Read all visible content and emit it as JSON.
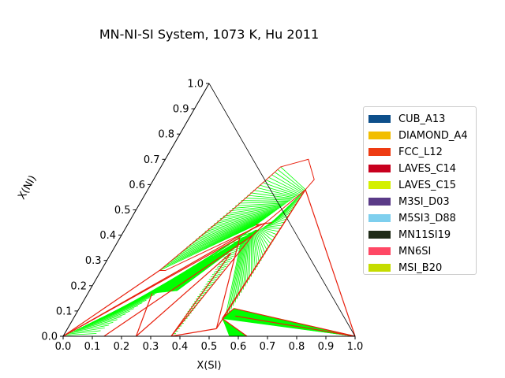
{
  "chart_data": {
    "type": "ternary phase diagram",
    "title": "MN-NI-SI System, 1073 K, Hu 2011",
    "xlabel": "X(SI)",
    "ylabel": "X(NI)",
    "xlim": [
      0,
      1
    ],
    "ylim": [
      0,
      1
    ],
    "x_ticks": [
      "0.0",
      "0.1",
      "0.2",
      "0.3",
      "0.4",
      "0.5",
      "0.6",
      "0.7",
      "0.8",
      "0.9",
      "1.0"
    ],
    "y_ticks": [
      "0.0",
      "0.1",
      "0.2",
      "0.3",
      "0.4",
      "0.5",
      "0.6",
      "0.7",
      "0.8",
      "0.9",
      "1.0"
    ],
    "legend_position": "right",
    "legend": [
      {
        "name": "CUB_A13",
        "color": "#0d4f8b"
      },
      {
        "name": "DIAMOND_A4",
        "color": "#f2be00"
      },
      {
        "name": "FCC_L12",
        "color": "#ee3b12"
      },
      {
        "name": "LAVES_C14",
        "color": "#c8001e"
      },
      {
        "name": "LAVES_C15",
        "color": "#d4f000"
      },
      {
        "name": "M3SI_D03",
        "color": "#5a3a87"
      },
      {
        "name": "M5SI3_D88",
        "color": "#7ecfee"
      },
      {
        "name": "MN11SI19",
        "color": "#1f2b18"
      },
      {
        "name": "MN6SI",
        "color": "#ff4865"
      },
      {
        "name": "MSI_B20",
        "color": "#c5dc00"
      }
    ],
    "tie_line_color": "#00ff00",
    "phase_boundary_color": "#e8200e",
    "single_phase_regions": [
      {
        "points": [
          [
            0.41,
            0.67
          ],
          [
            0.49,
            0.7
          ],
          [
            0.55,
            0.62
          ],
          [
            0.54,
            0.58
          ],
          [
            0.47,
            0.45
          ],
          [
            0.22,
            0.26
          ],
          [
            0.2,
            0.26
          ],
          [
            0.33,
            0.5
          ],
          [
            0.41,
            0.67
          ]
        ]
      }
    ],
    "tie_line_fields": [
      {
        "a": [
          [
            0.2,
            0.26
          ],
          [
            0.41,
            0.67
          ]
        ],
        "b": [
          [
            0.44,
            0.44
          ],
          [
            0.54,
            0.58
          ]
        ]
      },
      {
        "a": [
          [
            0.0,
            0.0
          ],
          [
            0.22,
            0.17
          ]
        ],
        "b": [
          [
            0.1,
            0.0
          ],
          [
            0.45,
            0.44
          ]
        ]
      },
      {
        "a": [
          [
            0.22,
            0.17
          ],
          [
            0.3,
            0.18
          ]
        ],
        "b": [
          [
            0.45,
            0.42
          ],
          [
            0.46,
            0.42
          ]
        ]
      },
      {
        "a": [
          [
            0.37,
            0.0
          ],
          [
            0.4,
            0.39
          ]
        ],
        "b": [
          [
            0.38,
            0.0
          ],
          [
            0.44,
            0.41
          ]
        ]
      },
      {
        "a": [
          [
            0.42,
            0.38
          ],
          [
            0.49,
            0.45
          ]
        ],
        "b": [
          [
            0.52,
            0.07
          ],
          [
            0.54,
            0.58
          ]
        ]
      },
      {
        "a": [
          [
            0.51,
            0.07
          ],
          [
            0.53,
            0.11
          ]
        ],
        "b": [
          [
            1.0,
            0.0
          ],
          [
            1.0,
            0.0
          ]
        ]
      },
      {
        "a": [
          [
            0.51,
            0.07
          ],
          [
            0.52,
            0.06
          ]
        ],
        "b": [
          [
            0.63,
            0.0
          ],
          [
            0.57,
            0.0
          ]
        ]
      }
    ],
    "boundary_lines": [
      [
        [
          0.0,
          0.0
        ],
        [
          0.2,
          0.26
        ]
      ],
      [
        [
          0.0,
          0.0
        ],
        [
          0.45,
          0.44
        ]
      ],
      [
        [
          0.0,
          0.0
        ],
        [
          0.41,
          0.39
        ]
      ],
      [
        [
          0.14,
          0.0
        ],
        [
          0.45,
          0.4
        ]
      ],
      [
        [
          0.25,
          0.0
        ],
        [
          0.22,
          0.17
        ]
      ],
      [
        [
          0.37,
          0.0
        ],
        [
          0.41,
          0.33
        ]
      ],
      [
        [
          0.41,
          0.33
        ],
        [
          0.25,
          0.0
        ]
      ],
      [
        [
          0.37,
          0.0
        ],
        [
          0.45,
          0.4
        ]
      ],
      [
        [
          0.37,
          0.0
        ],
        [
          0.51,
          0.03
        ]
      ],
      [
        [
          0.51,
          0.03
        ],
        [
          0.41,
          0.39
        ]
      ],
      [
        [
          0.51,
          0.03
        ],
        [
          0.54,
          0.58
        ]
      ],
      [
        [
          0.54,
          0.58
        ],
        [
          0.51,
          0.07
        ]
      ],
      [
        [
          0.51,
          0.07
        ],
        [
          0.53,
          0.11
        ]
      ],
      [
        [
          0.53,
          0.11
        ],
        [
          1.0,
          0.0
        ]
      ],
      [
        [
          0.54,
          0.58
        ],
        [
          1.0,
          0.0
        ]
      ],
      [
        [
          0.55,
          0.08
        ],
        [
          1.0,
          0.0
        ]
      ],
      [
        [
          0.51,
          0.07
        ],
        [
          0.63,
          0.0
        ]
      ],
      [
        [
          0.45,
          0.4
        ],
        [
          0.47,
          0.45
        ]
      ],
      [
        [
          0.49,
          0.45
        ],
        [
          0.44,
          0.44
        ]
      ]
    ]
  }
}
